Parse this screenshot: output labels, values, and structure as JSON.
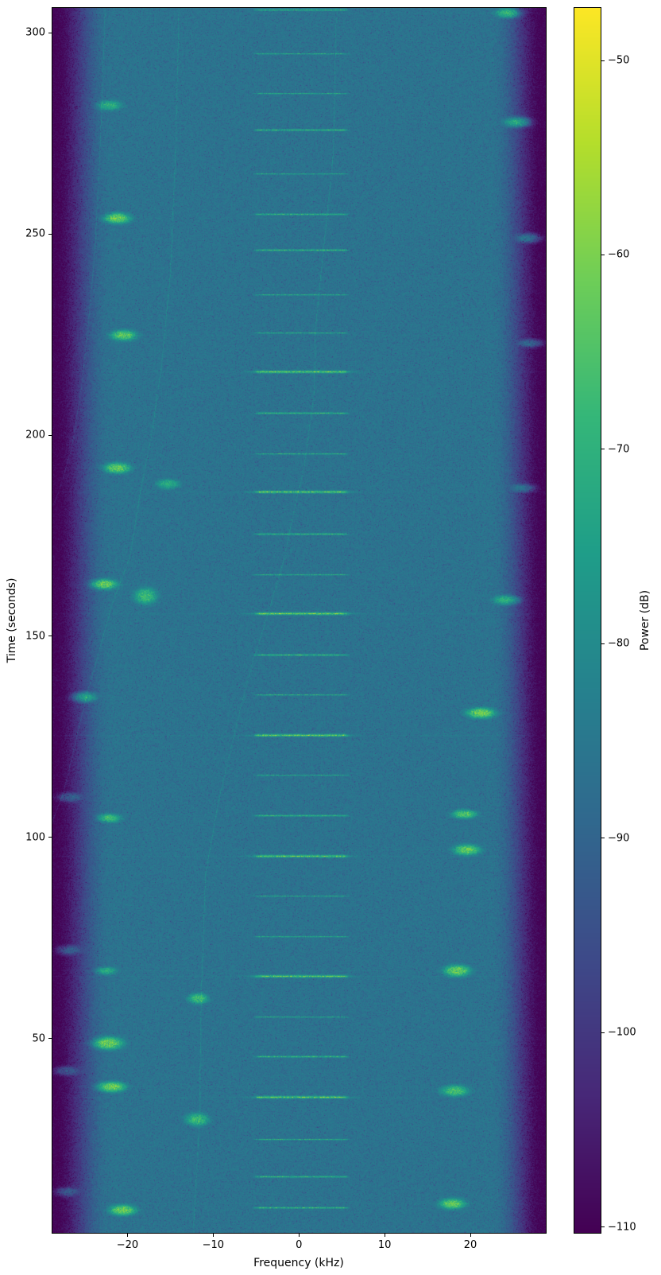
{
  "figure": {
    "xlabel": "Frequency (kHz)",
    "ylabel": "Time (seconds)",
    "colorbar_label": "Power (dB)"
  },
  "chart_data": {
    "type": "heatmap",
    "subtype": "spectrogram",
    "title": "",
    "xlabel": "Frequency (kHz)",
    "ylabel": "Time (seconds)",
    "colorbar_label": "Power (dB)",
    "colormap": "viridis",
    "x_tick_values": [
      -20,
      -10,
      0,
      10,
      20
    ],
    "x_tick_labels": [
      "−20",
      "−10",
      "0",
      "10",
      "20"
    ],
    "y_tick_values": [
      50,
      100,
      150,
      200,
      250,
      300
    ],
    "y_tick_labels": [
      "50",
      "100",
      "150",
      "200",
      "250",
      "300"
    ],
    "colorbar_tick_values": [
      -50,
      -60,
      -70,
      -80,
      -90,
      -100,
      -110
    ],
    "colorbar_tick_labels": [
      "−50",
      "−60",
      "−70",
      "−80",
      "−90",
      "−100",
      "−110"
    ],
    "freq_range_khz": [
      -28.75,
      28.8
    ],
    "time_range_s": [
      1.7,
      306.2
    ],
    "power_range_db": [
      -110.3,
      -47.3
    ],
    "noise_floor_db": -86.5,
    "edge_rolloff": {
      "start_abs_khz": 21.3,
      "full_dark_abs_khz": 28.5,
      "attenuation_db": 24
    },
    "burst_band_khz": [
      -5.4,
      5.9
    ],
    "bursts": [
      {
        "t": 305.8,
        "i": 0.45
      },
      {
        "t": 295.0,
        "i": 0.3
      },
      {
        "t": 285.0,
        "i": 0.3
      },
      {
        "t": 276.0,
        "i": 0.55
      },
      {
        "t": 265.0,
        "i": 0.3
      },
      {
        "t": 255.0,
        "i": 0.45
      },
      {
        "t": 246.0,
        "i": 0.55
      },
      {
        "t": 235.0,
        "i": 0.3
      },
      {
        "t": 225.5,
        "i": 0.35
      },
      {
        "t": 215.8,
        "i": 0.92
      },
      {
        "t": 205.5,
        "i": 0.5
      },
      {
        "t": 195.5,
        "i": 0.4
      },
      {
        "t": 186.0,
        "i": 0.88
      },
      {
        "t": 175.5,
        "i": 0.5
      },
      {
        "t": 165.5,
        "i": 0.35
      },
      {
        "t": 155.8,
        "i": 1.0
      },
      {
        "t": 145.5,
        "i": 0.5
      },
      {
        "t": 135.5,
        "i": 0.4
      },
      {
        "t": 125.5,
        "i": 0.95
      },
      {
        "t": 115.5,
        "i": 0.3
      },
      {
        "t": 105.5,
        "i": 0.45
      },
      {
        "t": 95.5,
        "i": 0.88
      },
      {
        "t": 85.5,
        "i": 0.3
      },
      {
        "t": 75.5,
        "i": 0.35
      },
      {
        "t": 65.5,
        "i": 0.85
      },
      {
        "t": 55.5,
        "i": 0.3
      },
      {
        "t": 45.5,
        "i": 0.5
      },
      {
        "t": 35.5,
        "i": 0.9
      },
      {
        "t": 25.0,
        "i": 0.4
      },
      {
        "t": 15.7,
        "i": 0.5
      },
      {
        "t": 8.0,
        "i": 0.55
      }
    ],
    "blobs": [
      {
        "f": -22.2,
        "t": 282,
        "i": 0.4,
        "wk": 2.4,
        "hs": 2.0
      },
      {
        "f": -21.2,
        "t": 254,
        "i": 0.85,
        "wk": 2.6,
        "hs": 2.2
      },
      {
        "f": -20.5,
        "t": 225,
        "i": 0.75,
        "wk": 2.5,
        "hs": 2.2
      },
      {
        "f": -21.2,
        "t": 192,
        "i": 0.8,
        "wk": 2.6,
        "hs": 2.2
      },
      {
        "f": -15.3,
        "t": 188,
        "i": 0.35,
        "wk": 2.2,
        "hs": 2.0
      },
      {
        "f": -22.8,
        "t": 163,
        "i": 0.85,
        "wk": 2.6,
        "hs": 2.2
      },
      {
        "f": -17.9,
        "t": 160,
        "i": 0.55,
        "wk": 2.2,
        "hs": 3.4
      },
      {
        "f": -25.1,
        "t": 135,
        "i": 0.65,
        "wk": 2.4,
        "hs": 2.2
      },
      {
        "f": -26.9,
        "t": 110,
        "i": 0.3,
        "wk": 2.4,
        "hs": 2.0
      },
      {
        "f": -22.2,
        "t": 105,
        "i": 0.6,
        "wk": 2.2,
        "hs": 1.8
      },
      {
        "f": -27.0,
        "t": 72,
        "i": 0.3,
        "wk": 2.4,
        "hs": 2.0
      },
      {
        "f": -22.5,
        "t": 67,
        "i": 0.35,
        "wk": 2.0,
        "hs": 1.6
      },
      {
        "f": -22.4,
        "t": 49,
        "i": 0.9,
        "wk": 3.0,
        "hs": 2.6
      },
      {
        "f": -27.3,
        "t": 42,
        "i": 0.3,
        "wk": 2.4,
        "hs": 2.0
      },
      {
        "f": -21.9,
        "t": 38,
        "i": 0.85,
        "wk": 2.8,
        "hs": 2.2
      },
      {
        "f": -27.2,
        "t": 12,
        "i": 0.3,
        "wk": 2.2,
        "hs": 2.0
      },
      {
        "f": -20.6,
        "t": 7.5,
        "i": 0.85,
        "wk": 2.6,
        "hs": 2.2
      },
      {
        "f": -11.8,
        "t": 60,
        "i": 0.55,
        "wk": 1.9,
        "hs": 2.2
      },
      {
        "f": -11.9,
        "t": 30,
        "i": 0.55,
        "wk": 2.2,
        "hs": 2.6
      },
      {
        "f": 24.4,
        "t": 305,
        "i": 0.75,
        "wk": 2.4,
        "hs": 2.0
      },
      {
        "f": 25.6,
        "t": 278,
        "i": 0.8,
        "wk": 2.6,
        "hs": 2.2
      },
      {
        "f": 26.9,
        "t": 249,
        "i": 0.5,
        "wk": 2.4,
        "hs": 2.0
      },
      {
        "f": 27.1,
        "t": 223,
        "i": 0.4,
        "wk": 2.4,
        "hs": 1.8
      },
      {
        "f": 26.3,
        "t": 187,
        "i": 0.3,
        "wk": 2.4,
        "hs": 1.8
      },
      {
        "f": 24.3,
        "t": 159,
        "i": 0.55,
        "wk": 2.6,
        "hs": 2.0
      },
      {
        "f": 21.2,
        "t": 131,
        "i": 0.85,
        "wk": 2.8,
        "hs": 2.2
      },
      {
        "f": 19.3,
        "t": 106,
        "i": 0.7,
        "wk": 2.4,
        "hs": 1.8
      },
      {
        "f": 19.5,
        "t": 97,
        "i": 0.8,
        "wk": 2.6,
        "hs": 2.2
      },
      {
        "f": 18.4,
        "t": 67,
        "i": 0.85,
        "wk": 2.6,
        "hs": 2.4
      },
      {
        "f": 18.1,
        "t": 37,
        "i": 0.65,
        "wk": 2.6,
        "hs": 2.2
      },
      {
        "f": 17.9,
        "t": 9,
        "i": 0.8,
        "wk": 2.6,
        "hs": 2.2
      }
    ],
    "traces": [
      {
        "name": "drift-trace-left-a",
        "boost": 4.5,
        "points": [
          [
            306,
            -22.6
          ],
          [
            271,
            -23.2
          ],
          [
            246,
            -23.8
          ],
          [
            227,
            -24.6
          ],
          [
            213,
            -25.3
          ],
          [
            197,
            -26.5
          ],
          [
            186,
            -28.0
          ],
          [
            182,
            -28.8
          ]
        ]
      },
      {
        "name": "drift-trace-left-b",
        "boost": 5.0,
        "points": [
          [
            306,
            -14.0
          ],
          [
            270,
            -14.4
          ],
          [
            240,
            -15.0
          ],
          [
            218,
            -16.0
          ],
          [
            200,
            -17.2
          ],
          [
            186,
            -18.5
          ],
          [
            170,
            -19.7
          ],
          [
            158,
            -21.8
          ],
          [
            136,
            -24.7
          ],
          [
            111,
            -27.5
          ],
          [
            104,
            -28.8
          ]
        ]
      },
      {
        "name": "drift-trace-center",
        "boost": 5.0,
        "points": [
          [
            304,
            4.35
          ],
          [
            270,
            4.0
          ],
          [
            226,
            1.9
          ],
          [
            211,
            1.8
          ],
          [
            192,
            0.6
          ],
          [
            184,
            -0.3
          ],
          [
            168,
            -1.9
          ],
          [
            153,
            -4.0
          ],
          [
            143,
            -5.5
          ],
          [
            129,
            -7.2
          ],
          [
            110,
            -9.3
          ],
          [
            91,
            -10.9
          ],
          [
            60,
            -11.4
          ],
          [
            30,
            -11.6
          ],
          [
            3,
            -12.3
          ]
        ]
      }
    ],
    "viridis_stops": [
      [
        68,
        1,
        84
      ],
      [
        72,
        40,
        120
      ],
      [
        62,
        74,
        137
      ],
      [
        49,
        104,
        142
      ],
      [
        38,
        130,
        142
      ],
      [
        31,
        158,
        137
      ],
      [
        53,
        183,
        121
      ],
      [
        110,
        206,
        88
      ],
      [
        180,
        222,
        44
      ],
      [
        253,
        231,
        37
      ]
    ]
  }
}
